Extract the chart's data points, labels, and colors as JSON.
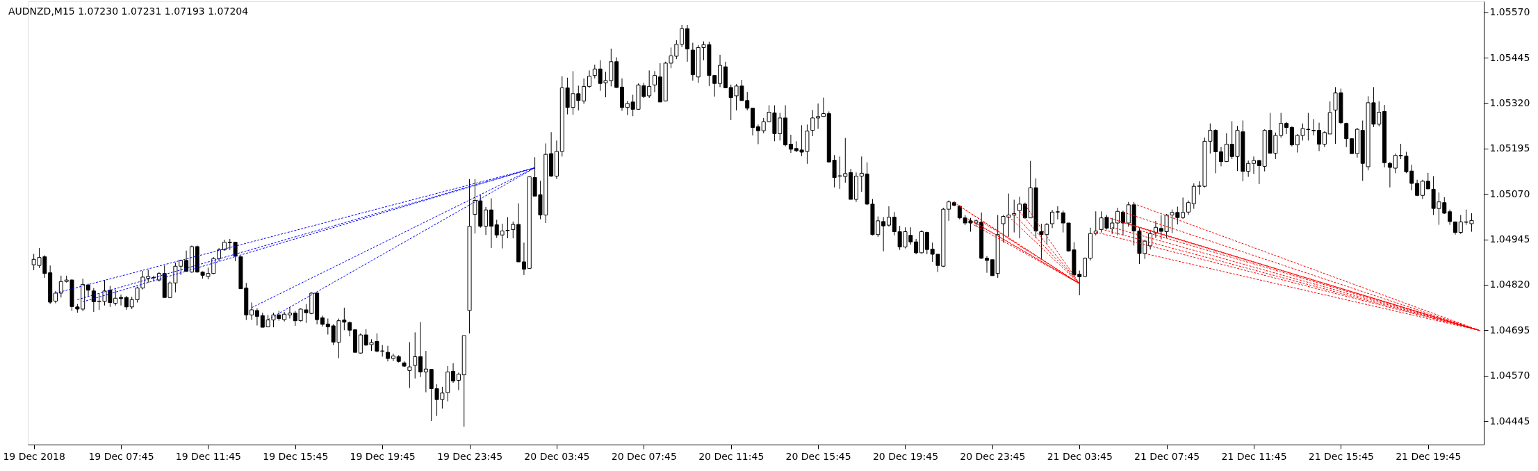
{
  "chart_data": {
    "type": "candlestick",
    "title": "AUDNZD,M15  1.07230 1.07231 1.07193 1.07204",
    "color": "#000000",
    "xlim": [
      "2018-12-19T03:38",
      "2018-12-21T22:09"
    ],
    "xticks": [
      {
        "value": "2018-12-19T03:45",
        "label": "19 Dec 2018"
      },
      {
        "value": "2018-12-19T07:45",
        "label": "19 Dec 07:45"
      },
      {
        "value": "2018-12-19T11:45",
        "label": "19 Dec 11:45"
      },
      {
        "value": "2018-12-19T15:45",
        "label": "19 Dec 15:45"
      },
      {
        "value": "2018-12-19T19:45",
        "label": "19 Dec 19:45"
      },
      {
        "value": "2018-12-19T23:45",
        "label": "19 Dec 23:45"
      },
      {
        "value": "2018-12-20T03:45",
        "label": "20 Dec 03:45"
      },
      {
        "value": "2018-12-20T07:45",
        "label": "20 Dec 07:45"
      },
      {
        "value": "2018-12-20T11:45",
        "label": "20 Dec 11:45"
      },
      {
        "value": "2018-12-20T15:45",
        "label": "20 Dec 15:45"
      },
      {
        "value": "2018-12-20T19:45",
        "label": "20 Dec 19:45"
      },
      {
        "value": "2018-12-20T23:45",
        "label": "20 Dec 23:45"
      },
      {
        "value": "2018-12-21T03:45",
        "label": "21 Dec 03:45"
      },
      {
        "value": "2018-12-21T07:45",
        "label": "21 Dec 07:45"
      },
      {
        "value": "2018-12-21T11:45",
        "label": "21 Dec 11:45"
      },
      {
        "value": "2018-12-21T15:45",
        "label": "21 Dec 15:45"
      },
      {
        "value": "2018-12-21T19:45",
        "label": "21 Dec 19:45"
      }
    ],
    "ylim": [
      1.0438,
      1.056
    ],
    "yticks": [
      {
        "value": 1.04445,
        "label": "1.04445"
      },
      {
        "value": 1.0457,
        "label": "1.04570"
      },
      {
        "value": 1.04695,
        "label": "1.04695"
      },
      {
        "value": 1.0482,
        "label": "1.04820"
      },
      {
        "value": 1.04945,
        "label": "1.04945"
      },
      {
        "value": 1.0507,
        "label": "1.05070"
      },
      {
        "value": 1.05195,
        "label": "1.05195"
      },
      {
        "value": 1.0532,
        "label": "1.05320"
      },
      {
        "value": 1.05445,
        "label": "1.05445"
      },
      {
        "value": 1.0557,
        "label": "1.05570"
      }
    ],
    "x": [
      "2018-12-19T03:45",
      "2018-12-19T04:00",
      "2018-12-19T04:15",
      "2018-12-19T04:30",
      "2018-12-19T04:45",
      "2018-12-19T05:00",
      "2018-12-19T05:15",
      "2018-12-19T05:30",
      "2018-12-19T05:45",
      "2018-12-19T06:00",
      "2018-12-19T06:15",
      "2018-12-19T06:30",
      "2018-12-19T06:45",
      "2018-12-19T07:00",
      "2018-12-19T07:15",
      "2018-12-19T07:30",
      "2018-12-19T07:45",
      "2018-12-19T08:00",
      "2018-12-19T08:15",
      "2018-12-19T08:30",
      "2018-12-19T08:45",
      "2018-12-19T09:00",
      "2018-12-19T09:15",
      "2018-12-19T09:30",
      "2018-12-19T09:45",
      "2018-12-19T10:00",
      "2018-12-19T10:15",
      "2018-12-19T10:30",
      "2018-12-19T10:45",
      "2018-12-19T11:00",
      "2018-12-19T11:15",
      "2018-12-19T11:30",
      "2018-12-19T11:45",
      "2018-12-19T12:00",
      "2018-12-19T12:15",
      "2018-12-19T12:30",
      "2018-12-19T12:45",
      "2018-12-19T13:00",
      "2018-12-19T13:15",
      "2018-12-19T13:30",
      "2018-12-19T13:45",
      "2018-12-19T14:00",
      "2018-12-19T14:15",
      "2018-12-19T14:30",
      "2018-12-19T14:45",
      "2018-12-19T15:00",
      "2018-12-19T15:15",
      "2018-12-19T15:30",
      "2018-12-19T15:45",
      "2018-12-19T16:00",
      "2018-12-19T16:15",
      "2018-12-19T16:30",
      "2018-12-19T16:45",
      "2018-12-19T17:00",
      "2018-12-19T17:15",
      "2018-12-19T17:30",
      "2018-12-19T17:45",
      "2018-12-19T18:00",
      "2018-12-19T18:15",
      "2018-12-19T18:30",
      "2018-12-19T18:45",
      "2018-12-19T19:00",
      "2018-12-19T19:15",
      "2018-12-19T19:30",
      "2018-12-19T19:45",
      "2018-12-19T20:00",
      "2018-12-19T20:15",
      "2018-12-19T20:30",
      "2018-12-19T20:45",
      "2018-12-19T21:00",
      "2018-12-19T21:15",
      "2018-12-19T21:30",
      "2018-12-19T21:45",
      "2018-12-19T22:00",
      "2018-12-19T22:15",
      "2018-12-19T22:30",
      "2018-12-19T22:45",
      "2018-12-19T23:00",
      "2018-12-19T23:15",
      "2018-12-19T23:30",
      "2018-12-19T23:45",
      "2018-12-20T00:00",
      "2018-12-20T00:15",
      "2018-12-20T00:30",
      "2018-12-20T00:45",
      "2018-12-20T01:00",
      "2018-12-20T01:15",
      "2018-12-20T01:30",
      "2018-12-20T01:45",
      "2018-12-20T02:00",
      "2018-12-20T02:15",
      "2018-12-20T02:30",
      "2018-12-20T02:45",
      "2018-12-20T03:00",
      "2018-12-20T03:15",
      "2018-12-20T03:30",
      "2018-12-20T03:45",
      "2018-12-20T04:00",
      "2018-12-20T04:15",
      "2018-12-20T04:30",
      "2018-12-20T04:45",
      "2018-12-20T05:00",
      "2018-12-20T05:15",
      "2018-12-20T05:30",
      "2018-12-20T05:45",
      "2018-12-20T06:00",
      "2018-12-20T06:15",
      "2018-12-20T06:30",
      "2018-12-20T06:45",
      "2018-12-20T07:00",
      "2018-12-20T07:15",
      "2018-12-20T07:30",
      "2018-12-20T07:45",
      "2018-12-20T08:00",
      "2018-12-20T08:15",
      "2018-12-20T08:30",
      "2018-12-20T08:45",
      "2018-12-20T09:00",
      "2018-12-20T09:15",
      "2018-12-20T09:30",
      "2018-12-20T09:45",
      "2018-12-20T10:00",
      "2018-12-20T10:15",
      "2018-12-20T10:30",
      "2018-12-20T10:45",
      "2018-12-20T11:00",
      "2018-12-20T11:15",
      "2018-12-20T11:30",
      "2018-12-20T11:45",
      "2018-12-20T12:00",
      "2018-12-20T12:15",
      "2018-12-20T12:30",
      "2018-12-20T12:45",
      "2018-12-20T13:00",
      "2018-12-20T13:15",
      "2018-12-20T13:30",
      "2018-12-20T13:45",
      "2018-12-20T14:00",
      "2018-12-20T14:15",
      "2018-12-20T14:30",
      "2018-12-20T14:45",
      "2018-12-20T15:00",
      "2018-12-20T15:15",
      "2018-12-20T15:30",
      "2018-12-20T15:45",
      "2018-12-20T16:00",
      "2018-12-20T16:15",
      "2018-12-20T16:30",
      "2018-12-20T16:45",
      "2018-12-20T17:00",
      "2018-12-20T17:15",
      "2018-12-20T17:30",
      "2018-12-20T17:45",
      "2018-12-20T18:00",
      "2018-12-20T18:15",
      "2018-12-20T18:30",
      "2018-12-20T18:45",
      "2018-12-20T19:00",
      "2018-12-20T19:15",
      "2018-12-20T19:30",
      "2018-12-20T19:45",
      "2018-12-20T20:00",
      "2018-12-20T20:15",
      "2018-12-20T20:30",
      "2018-12-20T20:45",
      "2018-12-20T21:00",
      "2018-12-20T21:15",
      "2018-12-20T21:30",
      "2018-12-20T21:45",
      "2018-12-20T22:00",
      "2018-12-20T22:15",
      "2018-12-20T22:30",
      "2018-12-20T22:45",
      "2018-12-20T23:00",
      "2018-12-20T23:15",
      "2018-12-20T23:30",
      "2018-12-20T23:45",
      "2018-12-21T00:00",
      "2018-12-21T00:15",
      "2018-12-21T00:30",
      "2018-12-21T00:45",
      "2018-12-21T01:00",
      "2018-12-21T01:15",
      "2018-12-21T01:30",
      "2018-12-21T01:45",
      "2018-12-21T02:00",
      "2018-12-21T02:15",
      "2018-12-21T02:30",
      "2018-12-21T02:45",
      "2018-12-21T03:00",
      "2018-12-21T03:15",
      "2018-12-21T03:30",
      "2018-12-21T03:45",
      "2018-12-21T04:00",
      "2018-12-21T04:15",
      "2018-12-21T04:30",
      "2018-12-21T04:45",
      "2018-12-21T05:00",
      "2018-12-21T05:15",
      "2018-12-21T05:30",
      "2018-12-21T05:45",
      "2018-12-21T06:00",
      "2018-12-21T06:15",
      "2018-12-21T06:30",
      "2018-12-21T06:45",
      "2018-12-21T07:00",
      "2018-12-21T07:15",
      "2018-12-21T07:30",
      "2018-12-21T07:45",
      "2018-12-21T08:00",
      "2018-12-21T08:15",
      "2018-12-21T08:30",
      "2018-12-21T08:45",
      "2018-12-21T09:00",
      "2018-12-21T09:15",
      "2018-12-21T09:30",
      "2018-12-21T09:45",
      "2018-12-21T10:00",
      "2018-12-21T10:15",
      "2018-12-21T10:30",
      "2018-12-21T10:45",
      "2018-12-21T11:00",
      "2018-12-21T11:15",
      "2018-12-21T11:30",
      "2018-12-21T11:45",
      "2018-12-21T12:00",
      "2018-12-21T12:15",
      "2018-12-21T12:30",
      "2018-12-21T12:45",
      "2018-12-21T13:00",
      "2018-12-21T13:15",
      "2018-12-21T13:30",
      "2018-12-21T13:45",
      "2018-12-21T14:00",
      "2018-12-21T14:15",
      "2018-12-21T14:30",
      "2018-12-21T14:45",
      "2018-12-21T15:00",
      "2018-12-21T15:15",
      "2018-12-21T15:30",
      "2018-12-21T15:45",
      "2018-12-21T16:00",
      "2018-12-21T16:15",
      "2018-12-21T16:30",
      "2018-12-21T16:45",
      "2018-12-21T17:00",
      "2018-12-21T17:15",
      "2018-12-21T17:30",
      "2018-12-21T17:45",
      "2018-12-21T18:00",
      "2018-12-21T18:15",
      "2018-12-21T18:30",
      "2018-12-21T18:45",
      "2018-12-21T19:00",
      "2018-12-21T19:15",
      "2018-12-21T19:30",
      "2018-12-21T19:45",
      "2018-12-21T20:00",
      "2018-12-21T20:15",
      "2018-12-21T20:30",
      "2018-12-21T20:45",
      "2018-12-21T21:00",
      "2018-12-21T21:15",
      "2018-12-21T21:30",
      "2018-12-21T21:45"
    ],
    "ohlc": [
      [
        1.04875,
        1.04905,
        1.0486,
        1.0489
      ],
      [
        1.04873,
        1.04921,
        1.04866,
        1.04895
      ],
      [
        1.04897,
        1.04901,
        1.04839,
        1.04851
      ],
      [
        1.04853,
        1.04873,
        1.04767,
        1.04772
      ],
      [
        1.04775,
        1.04803,
        1.04769,
        1.04797
      ],
      [
        1.04797,
        1.04845,
        1.04785,
        1.04829
      ],
      [
        1.04829,
        1.04845,
        1.04826,
        1.04833
      ],
      [
        1.04833,
        1.04835,
        1.04748,
        1.0476
      ],
      [
        1.04759,
        1.04767,
        1.04743,
        1.04753
      ],
      [
        1.04753,
        1.04837,
        1.04747,
        1.04821
      ],
      [
        1.04819,
        1.04823,
        1.04787,
        1.04805
      ],
      [
        1.04803,
        1.04811,
        1.04745,
        1.04773
      ],
      [
        1.04775,
        1.04797,
        1.04751,
        1.04774
      ],
      [
        1.04774,
        1.04833,
        1.04763,
        1.04803
      ],
      [
        1.04805,
        1.04817,
        1.04759,
        1.04771
      ],
      [
        1.04769,
        1.04807,
        1.04763,
        1.04783
      ],
      [
        1.04785,
        1.04793,
        1.04763,
        1.04782
      ],
      [
        1.04785,
        1.04789,
        1.04751,
        1.04759
      ],
      [
        1.04759,
        1.04787,
        1.04753,
        1.04779
      ],
      [
        1.04779,
        1.04815,
        1.04771,
        1.04811
      ],
      [
        1.04811,
        1.04858,
        1.04807,
        1.04841
      ],
      [
        1.04838,
        1.04861,
        1.04826,
        1.04843
      ],
      [
        1.0484,
        1.04845,
        1.04829,
        1.04839
      ],
      [
        1.04833,
        1.04855,
        1.04829,
        1.04851
      ],
      [
        1.04851,
        1.04873,
        1.04785,
        1.04785
      ],
      [
        1.04785,
        1.04829,
        1.04783,
        1.04825
      ],
      [
        1.04825,
        1.04881,
        1.04799,
        1.04871
      ],
      [
        1.04871,
        1.04889,
        1.04847,
        1.04887
      ],
      [
        1.04887,
        1.04914,
        1.04855,
        1.04857
      ],
      [
        1.04855,
        1.04928,
        1.04853,
        1.04925
      ],
      [
        1.04925,
        1.04928,
        1.04853,
        1.04855
      ],
      [
        1.04855,
        1.04857,
        1.04837,
        1.04846
      ],
      [
        1.04843,
        1.04867,
        1.04835,
        1.04851
      ],
      [
        1.04851,
        1.04896,
        1.04849,
        1.04892
      ],
      [
        1.04892,
        1.04921,
        1.04885,
        1.04916
      ],
      [
        1.04916,
        1.04944,
        1.04914,
        1.04937
      ],
      [
        1.04937,
        1.04946,
        1.04916,
        1.04936
      ],
      [
        1.04937,
        1.04938,
        1.04885,
        1.04899
      ],
      [
        1.04897,
        1.04899,
        1.04809,
        1.04809
      ],
      [
        1.04811,
        1.04825,
        1.04723,
        1.04737
      ],
      [
        1.04737,
        1.04771,
        1.04723,
        1.04751
      ],
      [
        1.04749,
        1.04755,
        1.04708,
        1.04733
      ],
      [
        1.04735,
        1.04743,
        1.04703,
        1.04703
      ],
      [
        1.04704,
        1.04737,
        1.04703,
        1.04723
      ],
      [
        1.04723,
        1.04743,
        1.04703,
        1.04737
      ],
      [
        1.04737,
        1.04748,
        1.04721,
        1.04727
      ],
      [
        1.04724,
        1.04745,
        1.04719,
        1.04739
      ],
      [
        1.04737,
        1.04759,
        1.04727,
        1.04742
      ],
      [
        1.04742,
        1.04748,
        1.04707,
        1.04721
      ],
      [
        1.04721,
        1.04755,
        1.04719,
        1.04753
      ],
      [
        1.04751,
        1.04767,
        1.04715,
        1.04743
      ],
      [
        1.04741,
        1.04799,
        1.04739,
        1.04797
      ],
      [
        1.04797,
        1.04799,
        1.04711,
        1.04724
      ],
      [
        1.04729,
        1.04735,
        1.04705,
        1.04711
      ],
      [
        1.04712,
        1.04727,
        1.04683,
        1.04704
      ],
      [
        1.04707,
        1.04711,
        1.04654,
        1.04662
      ],
      [
        1.04662,
        1.04727,
        1.04618,
        1.04721
      ],
      [
        1.04723,
        1.04757,
        1.04695,
        1.04717
      ],
      [
        1.04716,
        1.04719,
        1.04678,
        1.04695
      ],
      [
        1.04696,
        1.04697,
        1.04634,
        1.04634
      ],
      [
        1.04632,
        1.04686,
        1.0463,
        1.04682
      ],
      [
        1.04682,
        1.04698,
        1.04652,
        1.04654
      ],
      [
        1.04655,
        1.0467,
        1.04638,
        1.04661
      ],
      [
        1.04664,
        1.04686,
        1.04634,
        1.04637
      ],
      [
        1.04638,
        1.04654,
        1.04622,
        1.04637
      ],
      [
        1.04634,
        1.04652,
        1.04609,
        1.04617
      ],
      [
        1.04617,
        1.0463,
        1.0461,
        1.04624
      ],
      [
        1.04622,
        1.04626,
        1.04606,
        1.04609
      ],
      [
        1.04605,
        1.04609,
        1.04594,
        1.04596
      ],
      [
        1.04584,
        1.04662,
        1.04536,
        1.04594
      ],
      [
        1.04598,
        1.04689,
        1.04562,
        1.04622
      ],
      [
        1.04622,
        1.04717,
        1.04566,
        1.0458
      ],
      [
        1.0458,
        1.04638,
        1.04524,
        1.04588
      ],
      [
        1.04587,
        1.04587,
        1.04445,
        1.04534
      ],
      [
        1.04534,
        1.04546,
        1.04459,
        1.04504
      ],
      [
        1.04504,
        1.04539,
        1.04479,
        1.04522
      ],
      [
        1.04523,
        1.04596,
        1.04499,
        1.0458
      ],
      [
        1.04582,
        1.04604,
        1.0455,
        1.04555
      ],
      [
        1.04557,
        1.04578,
        1.0453,
        1.04574
      ],
      [
        1.04572,
        1.0468,
        1.04429,
        1.0468
      ],
      [
        1.04749,
        1.05111,
        1.04686,
        1.04981
      ],
      [
        1.05014,
        1.05111,
        1.04961,
        1.05052
      ],
      [
        1.05051,
        1.05067,
        1.04977,
        1.04981
      ],
      [
        1.04981,
        1.05034,
        1.04957,
        1.05026
      ],
      [
        1.05026,
        1.05058,
        1.04921,
        1.04981
      ],
      [
        1.04985,
        1.04999,
        1.04949,
        1.04957
      ],
      [
        1.04957,
        1.04988,
        1.0492,
        1.04968
      ],
      [
        1.0497,
        1.05006,
        1.04948,
        1.04969
      ],
      [
        1.04972,
        1.04994,
        1.04948,
        1.04986
      ],
      [
        1.04986,
        1.05044,
        1.04883,
        1.04883
      ],
      [
        1.04883,
        1.04936,
        1.04847,
        1.04863
      ],
      [
        1.04865,
        1.05117,
        1.04865,
        1.05117
      ],
      [
        1.05115,
        1.05171,
        1.05064,
        1.05064
      ],
      [
        1.05068,
        1.05106,
        1.05,
        1.05012
      ],
      [
        1.05012,
        1.05209,
        1.0499,
        1.05179
      ],
      [
        1.05181,
        1.0524,
        1.05117,
        1.05119
      ],
      [
        1.05119,
        1.05217,
        1.05111,
        1.05187
      ],
      [
        1.05187,
        1.05394,
        1.05173,
        1.05362
      ],
      [
        1.05362,
        1.0539,
        1.05289,
        1.05308
      ],
      [
        1.05308,
        1.05408,
        1.05288,
        1.05346
      ],
      [
        1.05346,
        1.05368,
        1.053,
        1.05327
      ],
      [
        1.05326,
        1.05388,
        1.05318,
        1.05366
      ],
      [
        1.05366,
        1.0541,
        1.05362,
        1.05394
      ],
      [
        1.05396,
        1.05426,
        1.05388,
        1.05414
      ],
      [
        1.05414,
        1.05438,
        1.05354,
        1.05374
      ],
      [
        1.05376,
        1.05406,
        1.05336,
        1.05382
      ],
      [
        1.05382,
        1.0547,
        1.05366,
        1.05434
      ],
      [
        1.05434,
        1.05446,
        1.05362,
        1.05363
      ],
      [
        1.05364,
        1.05388,
        1.05299,
        1.05308
      ],
      [
        1.05308,
        1.05326,
        1.05287,
        1.05319
      ],
      [
        1.05323,
        1.05343,
        1.05284,
        1.05303
      ],
      [
        1.05303,
        1.05374,
        1.05302,
        1.0537
      ],
      [
        1.05368,
        1.05376,
        1.05334,
        1.05338
      ],
      [
        1.0534,
        1.0541,
        1.05334,
        1.05366
      ],
      [
        1.0537,
        1.05408,
        1.0535,
        1.05396
      ],
      [
        1.05392,
        1.0543,
        1.05323,
        1.05323
      ],
      [
        1.05326,
        1.05434,
        1.05326,
        1.0543
      ],
      [
        1.0543,
        1.05473,
        1.05416,
        1.0545
      ],
      [
        1.05449,
        1.05493,
        1.05441,
        1.05482
      ],
      [
        1.05482,
        1.05535,
        1.05474,
        1.05525
      ],
      [
        1.05525,
        1.05535,
        1.05434,
        1.05469
      ],
      [
        1.05466,
        1.05486,
        1.05382,
        1.05398
      ],
      [
        1.05392,
        1.0548,
        1.05376,
        1.05473
      ],
      [
        1.05473,
        1.0549,
        1.05438,
        1.05481
      ],
      [
        1.05481,
        1.05489,
        1.05367,
        1.05396
      ],
      [
        1.05396,
        1.05396,
        1.05338,
        1.05374
      ],
      [
        1.05374,
        1.05453,
        1.05364,
        1.05424
      ],
      [
        1.0542,
        1.05434,
        1.05362,
        1.05362
      ],
      [
        1.05363,
        1.05371,
        1.05273,
        1.05335
      ],
      [
        1.0534,
        1.05372,
        1.053,
        1.05367
      ],
      [
        1.05367,
        1.05384,
        1.05327,
        1.05327
      ],
      [
        1.05327,
        1.05351,
        1.053,
        1.05306
      ],
      [
        1.05306,
        1.05306,
        1.05231,
        1.05253
      ],
      [
        1.05255,
        1.05261,
        1.05207,
        1.05244
      ],
      [
        1.05244,
        1.05279,
        1.05237,
        1.05269
      ],
      [
        1.05269,
        1.05314,
        1.05267,
        1.05295
      ],
      [
        1.05293,
        1.05314,
        1.05215,
        1.05236
      ],
      [
        1.05236,
        1.05293,
        1.05217,
        1.05279
      ],
      [
        1.05279,
        1.05314,
        1.05201,
        1.05205
      ],
      [
        1.05207,
        1.05233,
        1.05183,
        1.05193
      ],
      [
        1.05195,
        1.05215,
        1.05185,
        1.05189
      ],
      [
        1.05191,
        1.05259,
        1.05174,
        1.05185
      ],
      [
        1.05187,
        1.05261,
        1.05153,
        1.05243
      ],
      [
        1.05245,
        1.05301,
        1.05229,
        1.05279
      ],
      [
        1.05279,
        1.05319,
        1.05249,
        1.05283
      ],
      [
        1.05283,
        1.05335,
        1.05283,
        1.05291
      ],
      [
        1.05291,
        1.05297,
        1.05157,
        1.05158
      ],
      [
        1.05163,
        1.05177,
        1.05088,
        1.05115
      ],
      [
        1.0512,
        1.05173,
        1.05084,
        1.05119
      ],
      [
        1.05118,
        1.05224,
        1.05101,
        1.05126
      ],
      [
        1.05129,
        1.05139,
        1.05055,
        1.05055
      ],
      [
        1.05055,
        1.05129,
        1.05048,
        1.05119
      ],
      [
        1.05119,
        1.05173,
        1.05076,
        1.05127
      ],
      [
        1.05125,
        1.05157,
        1.05039,
        1.05042
      ],
      [
        1.05042,
        1.05056,
        1.04956,
        1.04958
      ],
      [
        1.04958,
        1.05008,
        1.04952,
        1.04996
      ],
      [
        1.04994,
        1.05006,
        1.04912,
        1.04982
      ],
      [
        1.04984,
        1.05036,
        1.0498,
        1.05006
      ],
      [
        1.05006,
        1.0502,
        1.04956,
        1.04966
      ],
      [
        1.04966,
        1.04982,
        1.04916,
        1.04924
      ],
      [
        1.04924,
        1.04978,
        1.0492,
        1.04966
      ],
      [
        1.04956,
        1.04978,
        1.0493,
        1.04938
      ],
      [
        1.04938,
        1.04946,
        1.04904,
        1.04908
      ],
      [
        1.04908,
        1.0497,
        1.04906,
        1.04966
      ],
      [
        1.04964,
        1.04966,
        1.04904,
        1.04917
      ],
      [
        1.04918,
        1.04936,
        1.04883,
        1.04904
      ],
      [
        1.04904,
        1.04904,
        1.04855,
        1.04873
      ],
      [
        1.04871,
        1.05032,
        1.04869,
        1.05028
      ],
      [
        1.05028,
        1.05052,
        1.04996,
        1.05048
      ],
      [
        1.05046,
        1.0505,
        1.05036,
        1.05039
      ],
      [
        1.05036,
        1.05039,
        1.05,
        1.05004
      ],
      [
        1.05004,
        1.05012,
        1.04984,
        1.0499
      ],
      [
        1.04996,
        1.05004,
        1.04966,
        1.0499
      ],
      [
        1.0499,
        1.05,
        1.0498,
        1.04996
      ],
      [
        1.04992,
        1.05019,
        1.04891,
        1.04893
      ],
      [
        1.04893,
        1.04899,
        1.04853,
        1.04887
      ],
      [
        1.04889,
        1.04889,
        1.04845,
        1.04845
      ],
      [
        1.04851,
        1.05012,
        1.04839,
        1.04958
      ],
      [
        1.04988,
        1.05012,
        1.04936,
        1.05008
      ],
      [
        1.05006,
        1.05071,
        1.04952,
        1.05012
      ],
      [
        1.05012,
        1.05054,
        1.04964,
        1.05016
      ],
      [
        1.05024,
        1.05062,
        1.04948,
        1.05042
      ],
      [
        1.05042,
        1.05046,
        1.05002,
        1.05004
      ],
      [
        1.05004,
        1.05161,
        1.05004,
        1.05087
      ],
      [
        1.05087,
        1.05113,
        1.04948,
        1.04968
      ],
      [
        1.04966,
        1.04988,
        1.04891,
        1.04958
      ],
      [
        1.04958,
        1.0499,
        1.04932,
        1.04986
      ],
      [
        1.04988,
        1.05026,
        1.04976,
        1.0502
      ],
      [
        1.0502,
        1.05036,
        1.05,
        1.05021
      ],
      [
        1.05018,
        1.05024,
        1.04964,
        1.0499
      ],
      [
        1.0499,
        1.0499,
        1.04912,
        1.04913
      ],
      [
        1.04916,
        1.04937,
        1.04842,
        1.04847
      ],
      [
        1.04849,
        1.04859,
        1.04791,
        1.04842
      ],
      [
        1.04843,
        1.04895,
        1.04842,
        1.04893
      ],
      [
        1.04893,
        1.04977,
        1.04887,
        1.04961
      ],
      [
        1.04961,
        1.05022,
        1.04956,
        1.04968
      ],
      [
        1.04972,
        1.05022,
        1.04964,
        1.05004
      ],
      [
        1.05006,
        1.05012,
        1.04972,
        1.04976
      ],
      [
        1.04974,
        1.05004,
        1.0496,
        1.0499
      ],
      [
        1.0499,
        1.05032,
        1.04956,
        1.05022
      ],
      [
        1.0502,
        1.05024,
        1.04956,
        1.0499
      ],
      [
        1.0499,
        1.05048,
        1.0498,
        1.0504
      ],
      [
        1.0504,
        1.05048,
        1.04928,
        1.04968
      ],
      [
        1.04968,
        1.04976,
        1.04877,
        1.04906
      ],
      [
        1.04906,
        1.04944,
        1.04891,
        1.0494
      ],
      [
        1.04927,
        1.0497,
        1.04917,
        1.04961
      ],
      [
        1.04962,
        1.04996,
        1.04949,
        1.04978
      ],
      [
        1.04975,
        1.05011,
        1.04945,
        1.04967
      ],
      [
        1.04966,
        1.05015,
        1.04949,
        1.05012
      ],
      [
        1.05012,
        1.05027,
        1.04962,
        1.05019
      ],
      [
        1.05019,
        1.05035,
        1.04986,
        1.05005
      ],
      [
        1.05005,
        1.0506,
        1.05001,
        1.05019
      ],
      [
        1.0502,
        1.05052,
        1.05012,
        1.05046
      ],
      [
        1.05043,
        1.05099,
        1.05029,
        1.05091
      ],
      [
        1.05091,
        1.05105,
        1.05068,
        1.05092
      ],
      [
        1.05091,
        1.05225,
        1.05088,
        1.05215
      ],
      [
        1.05215,
        1.05264,
        1.05181,
        1.05245
      ],
      [
        1.05245,
        1.05248,
        1.05127,
        1.05186
      ],
      [
        1.05186,
        1.05199,
        1.05146,
        1.05159
      ],
      [
        1.05159,
        1.05237,
        1.05158,
        1.05207
      ],
      [
        1.05207,
        1.0527,
        1.05166,
        1.05173
      ],
      [
        1.05173,
        1.05257,
        1.05133,
        1.05245
      ],
      [
        1.05241,
        1.05272,
        1.05105,
        1.05132
      ],
      [
        1.05132,
        1.05162,
        1.05117,
        1.05154
      ],
      [
        1.05154,
        1.05173,
        1.05125,
        1.05162
      ],
      [
        1.05162,
        1.05164,
        1.05097,
        1.05148
      ],
      [
        1.05146,
        1.05248,
        1.05132,
        1.05245
      ],
      [
        1.05245,
        1.05293,
        1.05181,
        1.05182
      ],
      [
        1.05182,
        1.05239,
        1.05166,
        1.05231
      ],
      [
        1.05231,
        1.05293,
        1.05225,
        1.05264
      ],
      [
        1.05264,
        1.05268,
        1.05235,
        1.05253
      ],
      [
        1.05253,
        1.05256,
        1.05201,
        1.05205
      ],
      [
        1.05205,
        1.05235,
        1.05184,
        1.05231
      ],
      [
        1.05231,
        1.05264,
        1.05217,
        1.0525
      ],
      [
        1.05248,
        1.05293,
        1.05217,
        1.05247
      ],
      [
        1.05245,
        1.05276,
        1.05231,
        1.05244
      ],
      [
        1.05245,
        1.05266,
        1.05188,
        1.05207
      ],
      [
        1.05207,
        1.05243,
        1.05199,
        1.05239
      ],
      [
        1.05235,
        1.05325,
        1.05235,
        1.05294
      ],
      [
        1.05301,
        1.05364,
        1.05208,
        1.05348
      ],
      [
        1.05348,
        1.0536,
        1.05262,
        1.05266
      ],
      [
        1.05264,
        1.05266,
        1.05199,
        1.05222
      ],
      [
        1.05222,
        1.05223,
        1.05181,
        1.05181
      ],
      [
        1.05181,
        1.05252,
        1.0517,
        1.05248
      ],
      [
        1.05245,
        1.05272,
        1.05106,
        1.05154
      ],
      [
        1.05145,
        1.05339,
        1.05135,
        1.05321
      ],
      [
        1.05321,
        1.05364,
        1.05254,
        1.05262
      ],
      [
        1.05262,
        1.05325,
        1.05256,
        1.05295
      ],
      [
        1.05297,
        1.05315,
        1.05143,
        1.05156
      ],
      [
        1.05154,
        1.05158,
        1.05088,
        1.05143
      ],
      [
        1.05141,
        1.05181,
        1.05127,
        1.05176
      ],
      [
        1.05176,
        1.05208,
        1.05166,
        1.05175
      ],
      [
        1.05174,
        1.05186,
        1.05127,
        1.05131
      ],
      [
        1.05133,
        1.0515,
        1.0508,
        1.05099
      ],
      [
        1.05099,
        1.05109,
        1.05064,
        1.05066
      ],
      [
        1.05066,
        1.05109,
        1.05056,
        1.05105
      ],
      [
        1.05105,
        1.05128,
        1.05083,
        1.05084
      ],
      [
        1.05083,
        1.05119,
        1.05012,
        1.0503
      ],
      [
        1.0503,
        1.05074,
        1.04985,
        1.05048
      ],
      [
        1.05046,
        1.05061,
        1.05015,
        1.05017
      ],
      [
        1.05021,
        1.05027,
        1.04985,
        1.04994
      ],
      [
        1.04993,
        1.04994,
        1.04958,
        1.04964
      ],
      [
        1.04964,
        1.05012,
        1.0496,
        1.04993
      ],
      [
        1.04993,
        1.05027,
        1.04985,
        1.04992
      ],
      [
        1.04988,
        1.05017,
        1.04966,
        1.04997
      ]
    ],
    "series": [
      {
        "type": "line",
        "color": "#0000ff",
        "line_style": "dashed",
        "x": [
          "2018-12-19T04:45",
          "2018-12-20T02:45"
        ],
        "values": [
          1.04797,
          1.05142
        ]
      },
      {
        "type": "line",
        "color": "#0000ff",
        "line_style": "dashed",
        "x": [
          "2018-12-19T05:45",
          "2018-12-20T02:45"
        ],
        "values": [
          1.04779,
          1.05142
        ]
      },
      {
        "type": "line",
        "color": "#0000ff",
        "line_style": "dashed",
        "x": [
          "2018-12-19T06:00",
          "2018-12-20T02:45"
        ],
        "values": [
          1.04773,
          1.05142
        ]
      },
      {
        "type": "line",
        "color": "#0000ff",
        "line_style": "dashed",
        "x": [
          "2018-12-19T13:45",
          "2018-12-20T02:45"
        ],
        "values": [
          1.04757,
          1.05142
        ]
      },
      {
        "type": "line",
        "color": "#0000ff",
        "line_style": "dashed",
        "x": [
          "2018-12-19T14:30",
          "2018-12-20T02:45"
        ],
        "values": [
          1.04724,
          1.05142
        ]
      },
      {
        "type": "line",
        "color": "#ff0000",
        "line_style": "dashed",
        "x": [
          "2018-12-20T22:00",
          "2018-12-21T03:45"
        ],
        "values": [
          1.05046,
          1.04823
        ]
      },
      {
        "type": "line",
        "color": "#ff0000",
        "line_style": "dashed",
        "x": [
          "2018-12-20T22:15",
          "2018-12-21T03:45"
        ],
        "values": [
          1.05036,
          1.04823
        ]
      },
      {
        "type": "line",
        "color": "#ff0000",
        "line_style": "dashed",
        "x": [
          "2018-12-20T22:30",
          "2018-12-21T03:45"
        ],
        "values": [
          1.05006,
          1.04823
        ]
      },
      {
        "type": "line",
        "color": "#ff0000",
        "line_style": "dashed",
        "x": [
          "2018-12-20T22:45",
          "2018-12-21T03:45"
        ],
        "values": [
          1.0499,
          1.04823
        ]
      },
      {
        "type": "line",
        "color": "#ff0000",
        "line_style": "dashed",
        "x": [
          "2018-12-20T23:00",
          "2018-12-21T03:45"
        ],
        "values": [
          1.0499,
          1.04823
        ]
      },
      {
        "type": "line",
        "color": "#ff0000",
        "line_style": "dashed",
        "x": [
          "2018-12-20T23:15",
          "2018-12-21T03:45"
        ],
        "values": [
          1.04994,
          1.04823
        ]
      },
      {
        "type": "line",
        "color": "#ff0000",
        "line_style": "dashed",
        "x": [
          "2018-12-21T00:30",
          "2018-12-21T03:45"
        ],
        "values": [
          1.05008,
          1.04823
        ]
      },
      {
        "type": "line",
        "color": "#ff0000",
        "line_style": "dashed",
        "x": [
          "2018-12-21T00:45",
          "2018-12-21T03:45"
        ],
        "values": [
          1.05014,
          1.04823
        ]
      },
      {
        "type": "line",
        "color": "#ff0000",
        "line_style": "dashed",
        "x": [
          "2018-12-21T01:00",
          "2018-12-21T03:45"
        ],
        "values": [
          1.05022,
          1.04823
        ]
      },
      {
        "type": "line",
        "color": "#ff0000",
        "line_style": "dashed",
        "x": [
          "2018-12-21T01:15",
          "2018-12-21T03:45"
        ],
        "values": [
          1.0504,
          1.04823
        ]
      },
      {
        "type": "line",
        "color": "#ff0000",
        "line_style": "dashed",
        "x": [
          "2018-12-21T04:30",
          "2018-12-21T22:08"
        ],
        "values": [
          1.04965,
          1.04694
        ]
      },
      {
        "type": "line",
        "color": "#ff0000",
        "line_style": "dashed",
        "x": [
          "2018-12-21T04:45",
          "2018-12-21T22:08"
        ],
        "values": [
          1.04973,
          1.04694
        ]
      },
      {
        "type": "line",
        "color": "#ff0000",
        "line_style": "dashed",
        "x": [
          "2018-12-21T05:00",
          "2018-12-21T22:08"
        ],
        "values": [
          1.05006,
          1.04694
        ]
      },
      {
        "type": "line",
        "color": "#ff0000",
        "line_style": "dashed",
        "x": [
          "2018-12-21T05:15",
          "2018-12-21T22:08"
        ],
        "values": [
          1.04978,
          1.04694
        ]
      },
      {
        "type": "line",
        "color": "#ff0000",
        "line_style": "dashed",
        "x": [
          "2018-12-21T05:30",
          "2018-12-21T22:08"
        ],
        "values": [
          1.04996,
          1.04694
        ]
      },
      {
        "type": "line",
        "color": "#ff0000",
        "line_style": "dashed",
        "x": [
          "2018-12-21T05:45",
          "2018-12-21T22:08"
        ],
        "values": [
          1.0502,
          1.04694
        ]
      },
      {
        "type": "line",
        "color": "#ff0000",
        "line_style": "dashed",
        "x": [
          "2018-12-21T06:00",
          "2018-12-21T22:08"
        ],
        "values": [
          1.04986,
          1.04694
        ]
      },
      {
        "type": "line",
        "color": "#ff0000",
        "line_style": "dashed",
        "x": [
          "2018-12-21T06:15",
          "2018-12-21T22:08"
        ],
        "values": [
          1.05043,
          1.04694
        ]
      },
      {
        "type": "line",
        "color": "#ff0000",
        "line_style": "dashed",
        "x": [
          "2018-12-21T06:30",
          "2018-12-21T22:08"
        ],
        "values": [
          1.0497,
          1.04694
        ]
      },
      {
        "type": "line",
        "color": "#ff0000",
        "line_style": "dashed",
        "x": [
          "2018-12-21T06:45",
          "2018-12-21T22:08"
        ],
        "values": [
          1.04906,
          1.04694
        ]
      }
    ]
  }
}
